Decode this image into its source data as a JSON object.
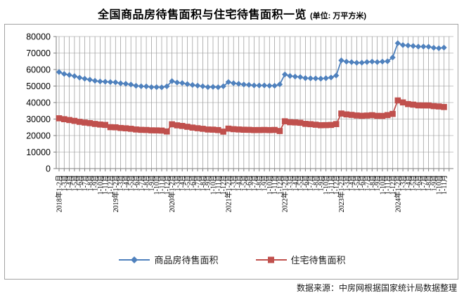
{
  "title": {
    "main": "全国商品房待售面积与住宅待售面积一览",
    "unit": "(单位: 万平方米)"
  },
  "source_note": "数据来源：中房网根据国家统计局数据整理",
  "colors": {
    "commodity_series": "#4F81BD",
    "residential_series": "#C0504D",
    "gridline_vertical": "#9c9c9c",
    "gridline_horizontal": "#c8c8c8",
    "axis": "#7f7f7f",
    "frame_border": "#a3a3a3"
  },
  "legend": [
    {
      "label": "商品房待售面积",
      "color": "#4F81BD",
      "marker": "diamond"
    },
    {
      "label": "住宅待售面积",
      "color": "#C0504D",
      "marker": "square"
    }
  ],
  "chart_data": {
    "type": "line",
    "title": "全国商品房待售面积与住宅待售面积一览",
    "unit_label": "万平方米",
    "ylim": [
      0,
      80000
    ],
    "yticks": [
      0,
      10000,
      20000,
      30000,
      40000,
      50000,
      60000,
      70000,
      80000
    ],
    "grid": true,
    "legend_position": "bottom",
    "x": [
      "2018年1-2月",
      "1-3月",
      "1-4月",
      "1-5月",
      "1-6月",
      "1-7月",
      "1-8月",
      "1-9月",
      "1-10月",
      "1-11月",
      "1-12月",
      "2019年1-2月",
      "1-3月",
      "1-4月",
      "1-5月",
      "1-6月",
      "1-7月",
      "1-8月",
      "1-9月",
      "1-10月",
      "1-11月",
      "1-12月",
      "2020年1-2月",
      "1-3月",
      "1-4月",
      "1-5月",
      "1-6月",
      "1-7月",
      "1-8月",
      "1-9月",
      "1-10月",
      "1-11月",
      "1-12月",
      "2021年1-2月",
      "1-3月",
      "1-4月",
      "1-5月",
      "1-6月",
      "1-7月",
      "1-8月",
      "1-9月",
      "1-10月",
      "1-11月",
      "1-12月",
      "2022年1-2月",
      "1-3月",
      "1-4月",
      "1-5月",
      "1-6月",
      "1-7月",
      "1-8月",
      "1-9月",
      "1-10月",
      "1-11月",
      "1-12月",
      "2023年1-2月",
      "1-3月",
      "1-4月",
      "1-5月",
      "1-6月",
      "1-7月",
      "1-8月",
      "1-9月",
      "1-10月",
      "1-11月",
      "1-12月",
      "2024年1-2月",
      "1-3月",
      "1-4月",
      "1-5月",
      "1-6月",
      "1-7月",
      "1-8月",
      "1-9月",
      "1-10月",
      "1-11月"
    ],
    "series": [
      {
        "id": "commodity",
        "name": "商品房待售面积",
        "color": "#4F81BD",
        "marker": "diamond",
        "values": [
          58468,
          57329,
          56726,
          56010,
          55083,
          54428,
          53873,
          53191,
          52789,
          52627,
          52414,
          52251,
          51646,
          51380,
          50928,
          50162,
          49876,
          49784,
          49346,
          49323,
          49221,
          49821,
          52976,
          52142,
          51825,
          51184,
          50662,
          50244,
          49864,
          49365,
          49492,
          49287,
          49850,
          52425,
          51720,
          51355,
          50928,
          50738,
          50397,
          50360,
          50385,
          50203,
          50182,
          51023,
          57026,
          56113,
          55735,
          55433,
          54784,
          54655,
          54605,
          54467,
          54734,
          55203,
          56366,
          65528,
          64770,
          64487,
          64120,
          64159,
          64564,
          64795,
          64537,
          64835,
          65023,
          67295,
          75969,
          74833,
          74553,
          74256,
          73894,
          73926,
          73811,
          73176,
          72920,
          73286
        ]
      },
      {
        "id": "residential",
        "name": "住宅待售面积",
        "color": "#C0504D",
        "marker": "square",
        "values": [
          30466,
          29913,
          29406,
          28897,
          28309,
          27869,
          27516,
          27041,
          26684,
          26441,
          25091,
          24997,
          24590,
          24387,
          24100,
          23691,
          23464,
          23384,
          23163,
          23125,
          23020,
          22473,
          26828,
          26186,
          25831,
          25315,
          24829,
          24444,
          24095,
          23672,
          23582,
          23335,
          22379,
          24203,
          23874,
          23684,
          23534,
          23476,
          23329,
          23352,
          23410,
          23321,
          23409,
          22761,
          28652,
          28085,
          27949,
          27743,
          27094,
          26889,
          26574,
          26261,
          26318,
          26429,
          26947,
          33348,
          32828,
          32526,
          32160,
          31983,
          32119,
          32333,
          31939,
          31897,
          32403,
          33119,
          41277,
          40079,
          39088,
          38740,
          38287,
          38244,
          38228,
          37837,
          37632,
          37302
        ]
      }
    ]
  }
}
